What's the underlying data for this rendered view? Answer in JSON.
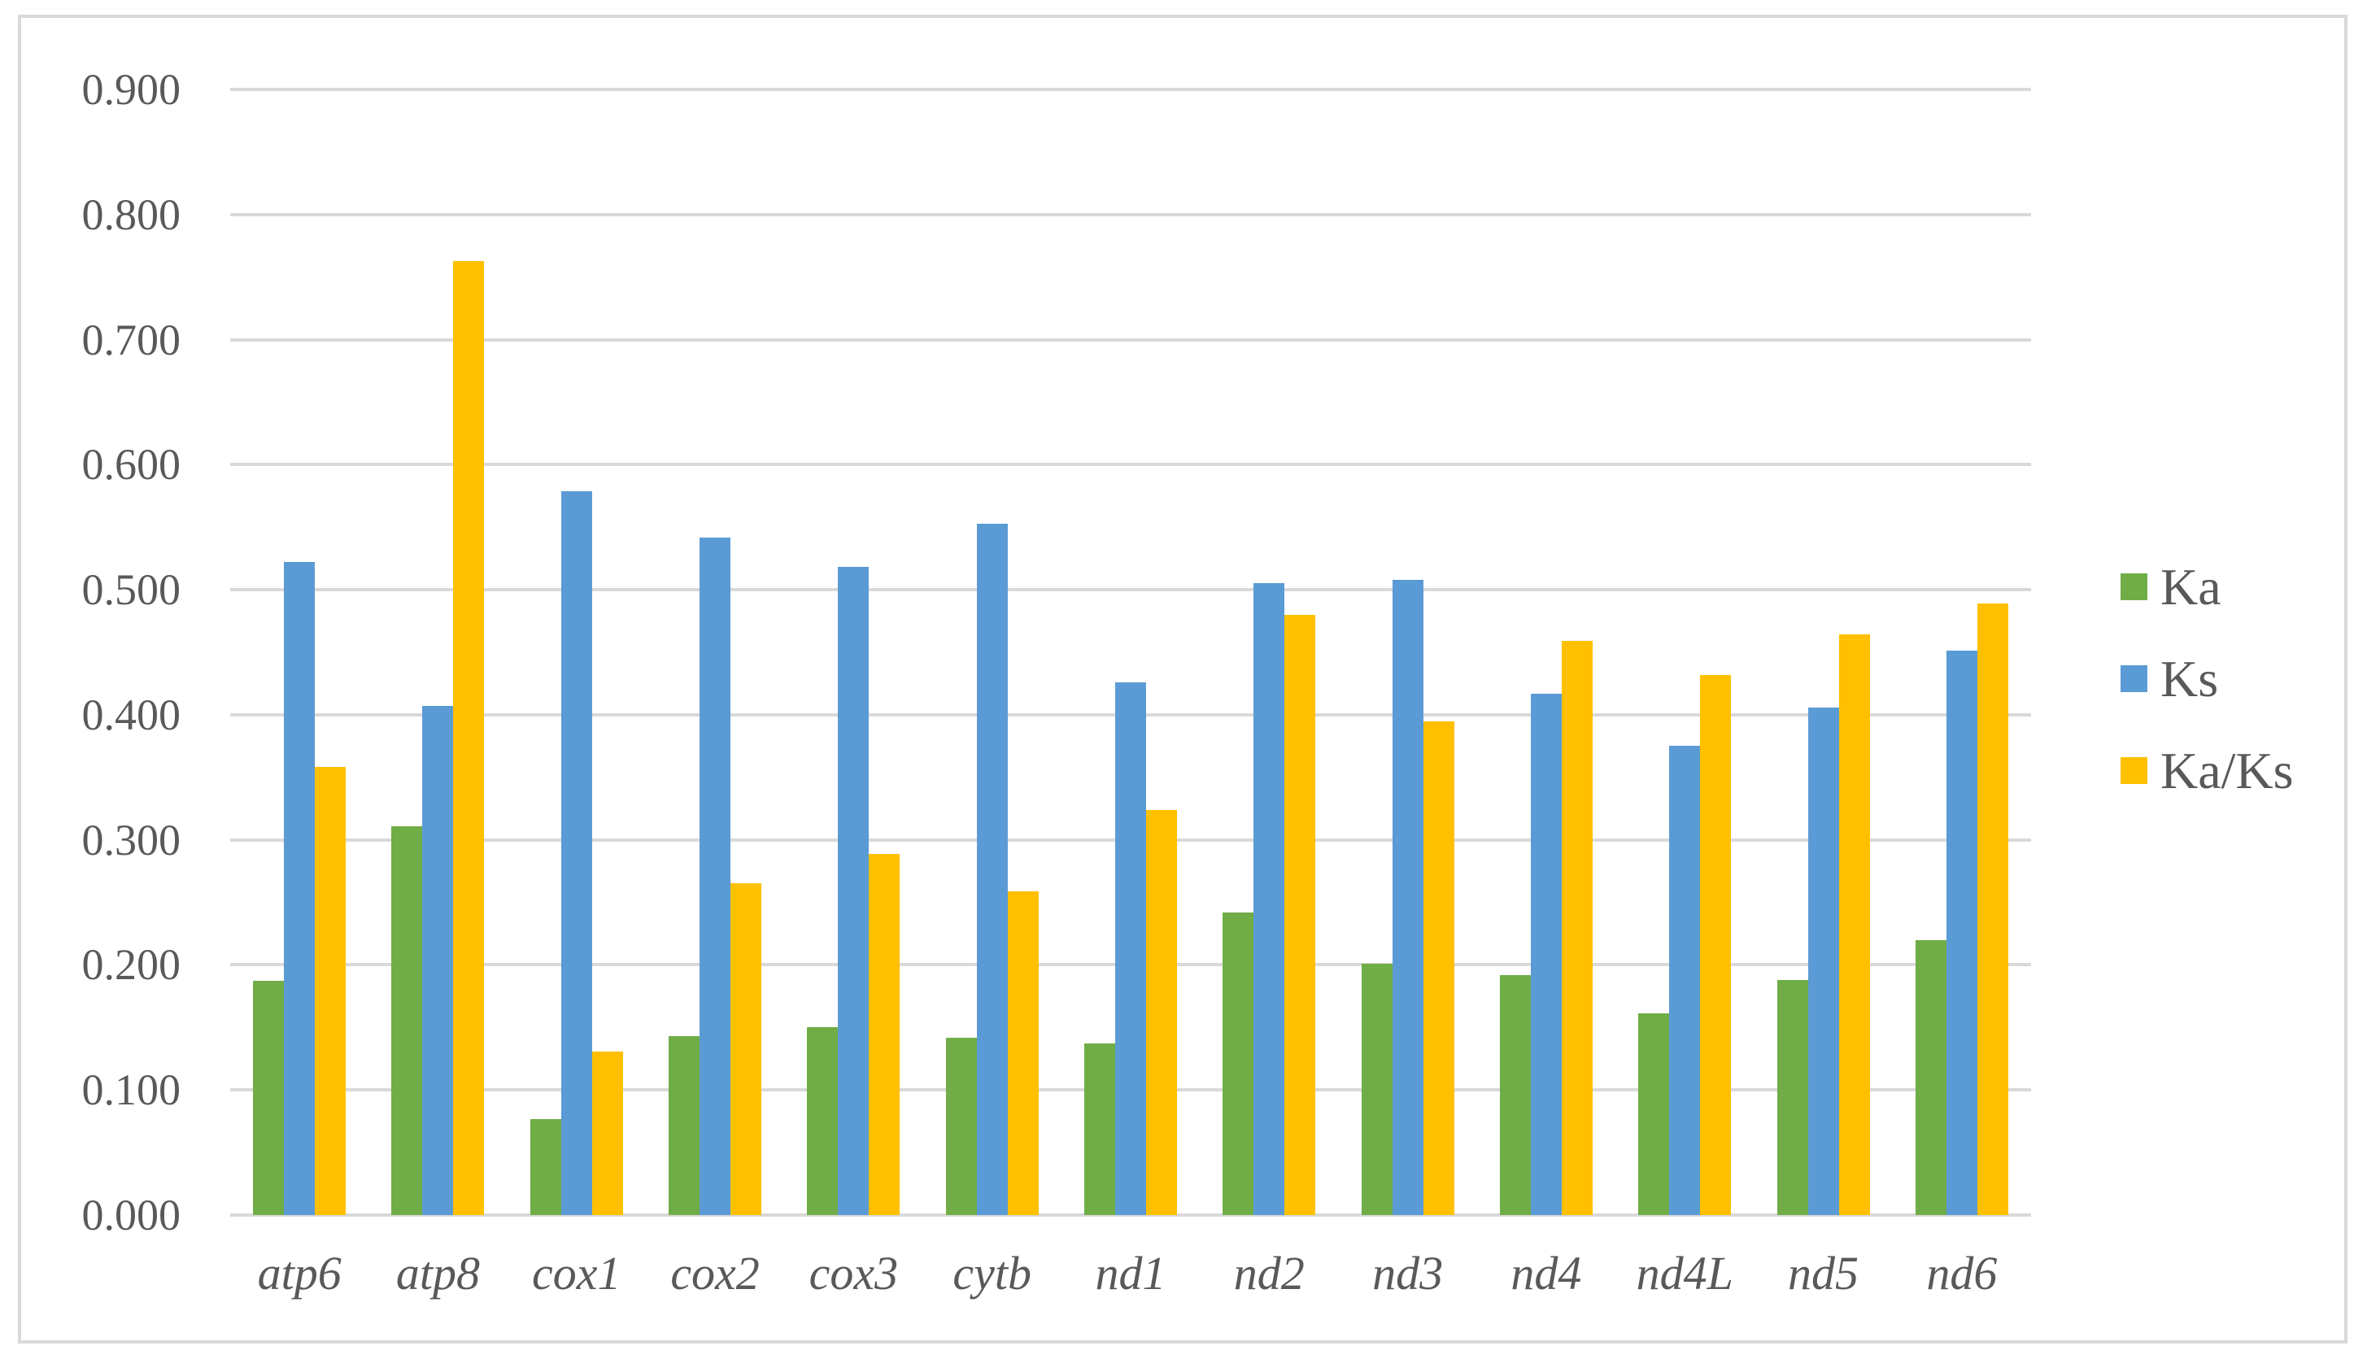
{
  "chart_data": {
    "type": "bar",
    "title": "",
    "xlabel": "",
    "ylabel": "",
    "categories": [
      "atp6",
      "atp8",
      "cox1",
      "cox2",
      "cox3",
      "cytb",
      "nd1",
      "nd2",
      "nd3",
      "nd4",
      "nd4L",
      "nd5",
      "nd6"
    ],
    "series": [
      {
        "name": "Ka",
        "color": "#70AD47",
        "values": [
          0.187,
          0.311,
          0.077,
          0.143,
          0.15,
          0.142,
          0.137,
          0.242,
          0.201,
          0.192,
          0.161,
          0.188,
          0.22
        ]
      },
      {
        "name": "Ks",
        "color": "#5B9BD5",
        "values": [
          0.522,
          0.407,
          0.579,
          0.542,
          0.518,
          0.553,
          0.426,
          0.505,
          0.508,
          0.417,
          0.375,
          0.406,
          0.451
        ]
      },
      {
        "name": "Ka/Ks",
        "color": "#FFC000",
        "values": [
          0.358,
          0.763,
          0.131,
          0.265,
          0.289,
          0.259,
          0.324,
          0.48,
          0.395,
          0.459,
          0.432,
          0.464,
          0.489
        ]
      }
    ],
    "ylim": [
      0.0,
      0.9
    ],
    "y_ticks": [
      "0.000",
      "0.100",
      "0.200",
      "0.300",
      "0.400",
      "0.500",
      "0.600",
      "0.700",
      "0.800",
      "0.900"
    ],
    "grid": true,
    "legend_position": "right"
  },
  "legend": {
    "items": [
      {
        "label": "Ka",
        "color": "#70AD47"
      },
      {
        "label": "Ks",
        "color": "#5B9BD5"
      },
      {
        "label": "Ka/Ks",
        "color": "#FFC000"
      }
    ]
  },
  "colors": {
    "background": "#FFFFFF",
    "border": "#D9D9D9",
    "gridline": "#D9D9D9",
    "axis_text": "#595959",
    "ka_green": "#70AD47",
    "ks_blue": "#5B9BD5",
    "kaks_yellow": "#FFC000"
  }
}
